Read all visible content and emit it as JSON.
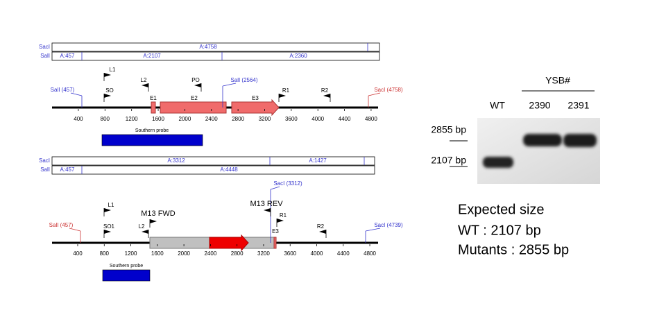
{
  "maps": [
    {
      "rows": [
        {
          "enzyme": "SacI",
          "fragments": [
            "A:4758"
          ]
        },
        {
          "enzyme": "SalI",
          "fragments": [
            "A:457",
            "A:2107",
            "A:2360"
          ]
        }
      ],
      "sites": [
        "SalI (457)",
        "SalI (2564)",
        "SacI (4758)"
      ],
      "primers": [
        "L1",
        "SO",
        "L2",
        "PO",
        "R1",
        "R2"
      ],
      "features": [
        "E1",
        "E2",
        "E3"
      ],
      "ticks": [
        400,
        800,
        1200,
        1600,
        2000,
        2400,
        2800,
        3200,
        3600,
        4000,
        4400,
        4800
      ],
      "probe": "Southern probe"
    },
    {
      "rows": [
        {
          "enzyme": "SacI",
          "fragments": [
            "A:3312",
            "A:1427"
          ]
        },
        {
          "enzyme": "SalI",
          "fragments": [
            "A:457",
            "A:4448"
          ]
        }
      ],
      "sites": [
        "SalI (457)",
        "SacI (3312)",
        "SacI (4739)"
      ],
      "primers": [
        "L1",
        "SO1",
        "L2",
        "M13 FWD",
        "M13 REV",
        "R1",
        "R2"
      ],
      "features": [
        "E3"
      ],
      "ticks": [
        400,
        800,
        1200,
        1600,
        2000,
        2400,
        2800,
        3200,
        3600,
        4000,
        4400,
        4800
      ],
      "probe": "Southern probe"
    }
  ],
  "gel": {
    "group": "YSB#",
    "lanes": [
      "WT",
      "2390",
      "2391"
    ],
    "markers": [
      "2855 bp",
      "2107 bp"
    ]
  },
  "expected": {
    "title": "Expected size",
    "lines": [
      "WT : 2107 bp",
      "Mutants : 2855 bp"
    ]
  }
}
